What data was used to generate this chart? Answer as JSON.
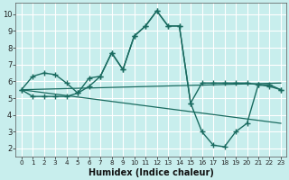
{
  "xlabel": "Humidex (Indice chaleur)",
  "bg_color": "#c8eeed",
  "grid_color": "#ffffff",
  "line_color": "#1a6b60",
  "xlim_min": -0.5,
  "xlim_max": 23.5,
  "ylim_min": 1.5,
  "ylim_max": 10.7,
  "yticks": [
    2,
    3,
    4,
    5,
    6,
    7,
    8,
    9,
    10
  ],
  "xticks": [
    0,
    1,
    2,
    3,
    4,
    5,
    6,
    7,
    8,
    9,
    10,
    11,
    12,
    13,
    14,
    15,
    16,
    17,
    18,
    19,
    20,
    21,
    22,
    23
  ],
  "line1_x": [
    0,
    1,
    2,
    3,
    4,
    5,
    6,
    7,
    8,
    9,
    10,
    11,
    12,
    13,
    14,
    15,
    16,
    17,
    18,
    19,
    20,
    21,
    22,
    23
  ],
  "line1_y": [
    5.5,
    6.3,
    6.5,
    6.4,
    5.9,
    5.3,
    6.2,
    6.3,
    7.7,
    6.7,
    8.7,
    9.3,
    10.2,
    9.3,
    9.3,
    4.7,
    5.9,
    5.9,
    5.9,
    5.9,
    5.9,
    5.8,
    5.8,
    5.5
  ],
  "line2_x": [
    0,
    1,
    2,
    3,
    4,
    5,
    6,
    7,
    8,
    9,
    10,
    11,
    12,
    13,
    14,
    15,
    16,
    17,
    18,
    19,
    20,
    21,
    22,
    23
  ],
  "line2_y": [
    5.5,
    5.1,
    5.1,
    5.1,
    5.1,
    5.3,
    5.7,
    6.3,
    7.7,
    6.7,
    8.7,
    9.3,
    10.2,
    9.3,
    9.3,
    4.7,
    3.0,
    2.2,
    2.1,
    3.0,
    3.5,
    5.8,
    5.7,
    5.5
  ],
  "trend1_x": [
    0,
    23
  ],
  "trend1_y": [
    5.5,
    5.9
  ],
  "trend2_x": [
    0,
    23
  ],
  "trend2_y": [
    5.5,
    3.5
  ]
}
